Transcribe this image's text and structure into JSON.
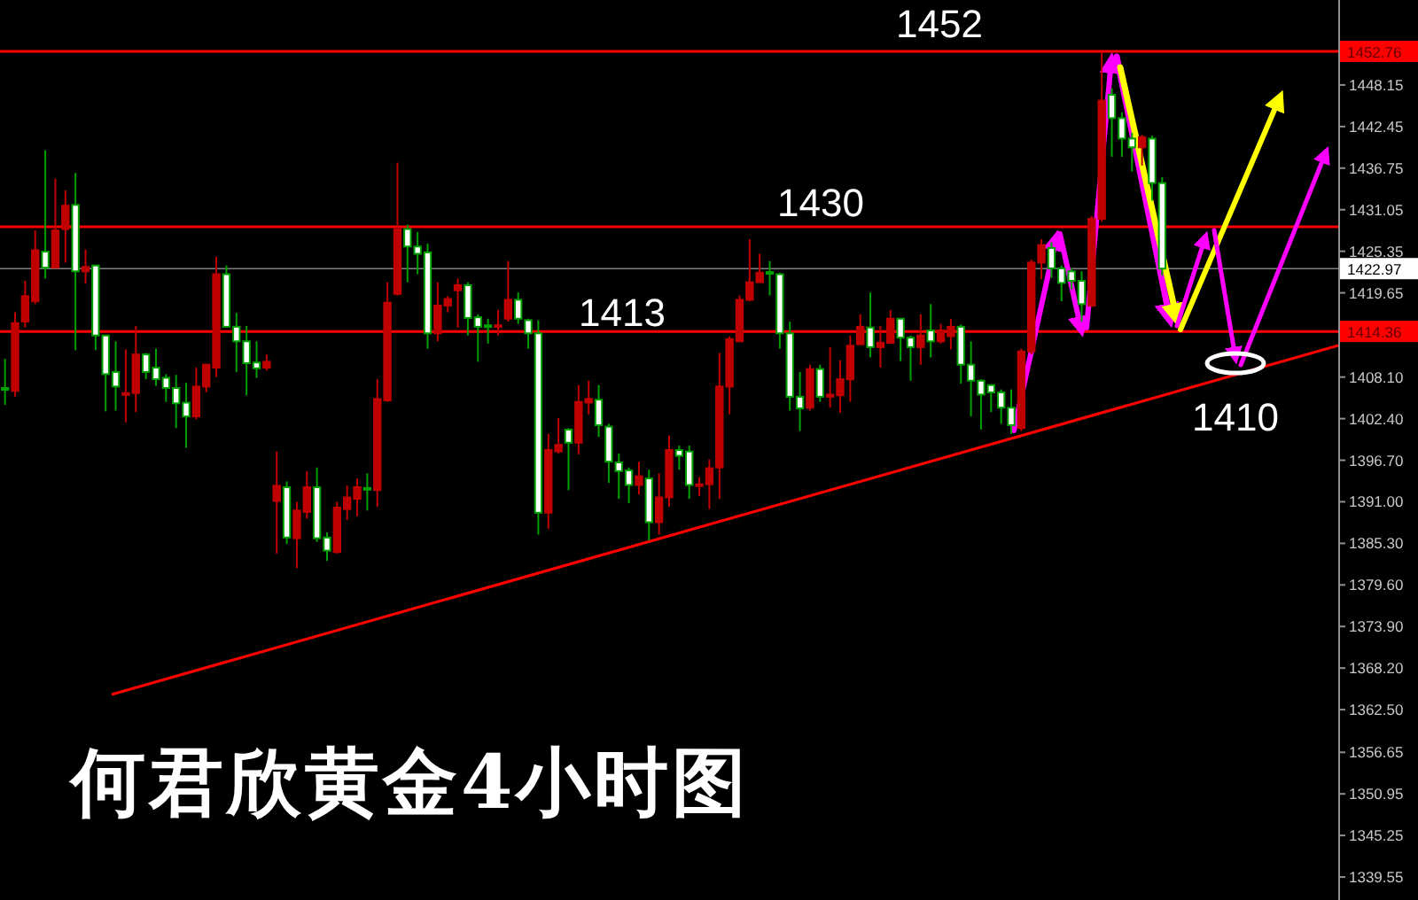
{
  "chart_data": {
    "type": "candlestick",
    "title": "何君欣黄金4小时图",
    "categories": [
      null,
      null,
      null,
      null,
      null,
      null,
      null,
      null,
      null,
      null,
      null,
      null,
      null,
      null,
      null,
      null,
      null,
      null,
      null,
      null,
      null,
      null,
      null,
      null,
      null,
      null,
      null,
      null,
      null,
      null,
      null,
      null,
      null,
      null,
      null,
      null,
      null,
      null,
      null,
      null,
      null,
      null,
      null,
      null,
      null,
      null,
      null,
      null,
      null,
      null,
      null,
      null,
      null,
      null,
      null,
      null,
      null,
      null,
      null,
      null,
      null,
      null,
      null,
      null,
      null,
      null,
      null,
      null,
      null,
      null,
      null,
      null,
      null,
      null,
      null,
      null,
      null,
      null,
      null,
      null,
      null,
      null,
      null,
      null,
      null,
      null,
      null,
      null,
      null,
      null,
      null,
      null,
      null,
      null,
      null,
      null,
      null,
      null,
      null,
      null,
      null,
      null,
      null,
      null,
      null,
      null,
      null,
      null,
      null,
      null,
      null,
      null,
      null,
      null,
      null,
      null,
      null,
      null,
      null,
      null,
      null,
      null,
      null,
      null,
      null,
      null,
      null,
      null,
      null,
      null,
      null,
      null,
      null
    ],
    "ohlc": [
      [
        1406.6,
        1410.6,
        1404.3,
        1406.4
      ],
      [
        1406.2,
        1417.0,
        1405.4,
        1415.5
      ],
      [
        1415.7,
        1421.3,
        1414.9,
        1419.2
      ],
      [
        1418.5,
        1428.2,
        1418.1,
        1425.5
      ],
      [
        1425.3,
        1439.2,
        1421.6,
        1423.1
      ],
      [
        1423.1,
        1435.3,
        1423.0,
        1428.2
      ],
      [
        1428.4,
        1433.7,
        1423.8,
        1431.6
      ],
      [
        1431.7,
        1436.1,
        1411.8,
        1422.6
      ],
      [
        1422.6,
        1425.6,
        1420.9,
        1423.2
      ],
      [
        1423.4,
        1423.5,
        1411.8,
        1413.8
      ],
      [
        1413.8,
        1413.8,
        1403.4,
        1408.5
      ],
      [
        1408.8,
        1413.0,
        1403.5,
        1406.8
      ],
      [
        1405.7,
        1411.9,
        1401.9,
        1405.9
      ],
      [
        1405.9,
        1415.1,
        1403.3,
        1411.2
      ],
      [
        1411.2,
        1411.4,
        1407.8,
        1408.8
      ],
      [
        1409.4,
        1412.0,
        1406.9,
        1407.8
      ],
      [
        1408.0,
        1408.5,
        1404.7,
        1406.6
      ],
      [
        1406.6,
        1408.4,
        1401.1,
        1404.5
      ],
      [
        1404.6,
        1407.3,
        1398.4,
        1402.7
      ],
      [
        1402.7,
        1409.4,
        1402.3,
        1406.8
      ],
      [
        1406.8,
        1409.8,
        1406.0,
        1409.8
      ],
      [
        1409.4,
        1424.6,
        1408.1,
        1422.2
      ],
      [
        1422.2,
        1423.4,
        1414.9,
        1415.0
      ],
      [
        1415.0,
        1416.9,
        1408.8,
        1413.0
      ],
      [
        1413.0,
        1415.1,
        1405.6,
        1410.0
      ],
      [
        1410.1,
        1413.0,
        1408.0,
        1409.3
      ],
      [
        1409.4,
        1411.2,
        1409.0,
        1410.2
      ],
      [
        1391.1,
        1397.9,
        1383.9,
        1393.2
      ],
      [
        1393.0,
        1393.8,
        1385.2,
        1386.1
      ],
      [
        1386.0,
        1391.0,
        1381.9,
        1389.8
      ],
      [
        1389.6,
        1395.2,
        1388.7,
        1393.0
      ],
      [
        1393.0,
        1395.7,
        1385.5,
        1386.0
      ],
      [
        1386.1,
        1386.8,
        1382.9,
        1384.3
      ],
      [
        1384.1,
        1391.0,
        1383.9,
        1390.2
      ],
      [
        1390.0,
        1393.2,
        1388.5,
        1391.6
      ],
      [
        1391.4,
        1394.2,
        1389.0,
        1393.0
      ],
      [
        1392.9,
        1394.9,
        1389.8,
        1392.8
      ],
      [
        1392.6,
        1407.8,
        1390.3,
        1405.1
      ],
      [
        1404.9,
        1421.1,
        1404.7,
        1418.3
      ],
      [
        1419.5,
        1437.5,
        1419.3,
        1428.4
      ],
      [
        1428.4,
        1429.0,
        1421.1,
        1426.0
      ],
      [
        1426.0,
        1428.0,
        1422.2,
        1425.0
      ],
      [
        1425.2,
        1426.4,
        1412.0,
        1414.1
      ],
      [
        1414.1,
        1421.1,
        1413.0,
        1417.9
      ],
      [
        1417.9,
        1419.2,
        1417.0,
        1418.8
      ],
      [
        1420.0,
        1421.6,
        1414.9,
        1420.7
      ],
      [
        1420.7,
        1421.1,
        1413.8,
        1416.2
      ],
      [
        1416.3,
        1416.7,
        1410.2,
        1415.0
      ],
      [
        1415.2,
        1416.1,
        1412.7,
        1415.1
      ],
      [
        1415.0,
        1417.3,
        1413.8,
        1415.2
      ],
      [
        1416.1,
        1424.0,
        1415.7,
        1418.7
      ],
      [
        1418.7,
        1419.7,
        1415.4,
        1416.1
      ],
      [
        1415.9,
        1416.1,
        1412.0,
        1414.1
      ],
      [
        1414.1,
        1415.9,
        1386.5,
        1389.5
      ],
      [
        1389.5,
        1400.3,
        1387.3,
        1398.1
      ],
      [
        1397.9,
        1402.5,
        1397.6,
        1398.8
      ],
      [
        1400.9,
        1401.1,
        1392.6,
        1399.1
      ],
      [
        1399.1,
        1407.0,
        1397.5,
        1404.7
      ],
      [
        1404.6,
        1407.6,
        1403.0,
        1405.1
      ],
      [
        1405.0,
        1407.0,
        1399.9,
        1401.5
      ],
      [
        1401.3,
        1401.7,
        1393.6,
        1396.5
      ],
      [
        1396.4,
        1397.6,
        1391.4,
        1395.2
      ],
      [
        1395.3,
        1395.7,
        1390.8,
        1393.3
      ],
      [
        1393.3,
        1396.5,
        1392.0,
        1394.5
      ],
      [
        1394.2,
        1395.4,
        1385.7,
        1388.2
      ],
      [
        1388.2,
        1394.9,
        1386.5,
        1391.6
      ],
      [
        1391.6,
        1400.1,
        1390.3,
        1398.1
      ],
      [
        1398.1,
        1398.7,
        1395.4,
        1397.3
      ],
      [
        1397.9,
        1398.7,
        1391.4,
        1393.3
      ],
      [
        1393.2,
        1394.4,
        1391.8,
        1393.4
      ],
      [
        1393.4,
        1396.8,
        1390.0,
        1395.6
      ],
      [
        1395.7,
        1411.4,
        1391.4,
        1406.8
      ],
      [
        1406.8,
        1413.7,
        1403.0,
        1413.3
      ],
      [
        1413.0,
        1419.3,
        1413.0,
        1418.7
      ],
      [
        1418.7,
        1427.0,
        1418.5,
        1421.1
      ],
      [
        1421.1,
        1425.0,
        1421.1,
        1422.4
      ],
      [
        1422.5,
        1424.0,
        1419.3,
        1422.4
      ],
      [
        1422.2,
        1422.4,
        1412.0,
        1414.1
      ],
      [
        1414.1,
        1415.7,
        1403.5,
        1405.4
      ],
      [
        1405.4,
        1408.8,
        1400.7,
        1403.8
      ],
      [
        1403.9,
        1409.8,
        1403.5,
        1409.2
      ],
      [
        1409.2,
        1409.8,
        1404.7,
        1405.4
      ],
      [
        1405.4,
        1412.2,
        1403.9,
        1405.7
      ],
      [
        1405.6,
        1410.4,
        1403.2,
        1407.8
      ],
      [
        1407.8,
        1413.8,
        1404.7,
        1412.4
      ],
      [
        1412.6,
        1416.7,
        1412.6,
        1415.0
      ],
      [
        1414.9,
        1419.7,
        1410.8,
        1412.2
      ],
      [
        1412.2,
        1415.1,
        1409.4,
        1412.8
      ],
      [
        1412.8,
        1417.3,
        1412.7,
        1416.1
      ],
      [
        1416.1,
        1416.2,
        1410.3,
        1413.5
      ],
      [
        1413.5,
        1413.8,
        1407.6,
        1412.2
      ],
      [
        1412.2,
        1416.7,
        1409.8,
        1413.8
      ],
      [
        1414.5,
        1418.1,
        1410.8,
        1413.0
      ],
      [
        1413.0,
        1415.4,
        1412.7,
        1414.5
      ],
      [
        1413.7,
        1416.1,
        1411.9,
        1415.0
      ],
      [
        1415.0,
        1415.3,
        1407.2,
        1409.8
      ],
      [
        1409.8,
        1413.0,
        1402.7,
        1407.6
      ],
      [
        1407.6,
        1407.8,
        1400.9,
        1405.7
      ],
      [
        1407.0,
        1407.0,
        1403.3,
        1406.0
      ],
      [
        1406.0,
        1406.4,
        1401.7,
        1403.9
      ],
      [
        1403.9,
        1406.4,
        1400.3,
        1401.5
      ],
      [
        1401.1,
        1412.0,
        1400.7,
        1411.6
      ],
      [
        1411.6,
        1424.2,
        1411.2,
        1423.8
      ],
      [
        1423.8,
        1427.0,
        1421.5,
        1426.2
      ],
      [
        1425.8,
        1426.6,
        1421.7,
        1423.0
      ],
      [
        1423.0,
        1423.4,
        1418.5,
        1421.0
      ],
      [
        1422.6,
        1423.0,
        1420.1,
        1421.3
      ],
      [
        1421.3,
        1422.6,
        1415.7,
        1418.1
      ],
      [
        1417.9,
        1430.2,
        1417.7,
        1429.8
      ],
      [
        1429.8,
        1452.7,
        1429.4,
        1446.0
      ],
      [
        1446.8,
        1447.7,
        1438.3,
        1443.6
      ],
      [
        1443.6,
        1444.4,
        1438.3,
        1440.8
      ],
      [
        1440.8,
        1441.6,
        1436.3,
        1439.6
      ],
      [
        1439.6,
        1441.3,
        1437.1,
        1441.0
      ],
      [
        1440.8,
        1441.2,
        1432.3,
        1434.7
      ],
      [
        1434.7,
        1435.5,
        1422.0,
        1422.97
      ],
      null,
      null,
      null,
      null,
      null,
      null,
      null,
      null,
      null,
      null,
      null,
      null,
      null,
      null,
      null,
      null,
      null
    ],
    "ylim": [
      1336.4,
      1459.8
    ],
    "yticks": [
      {
        "value": 1339.55,
        "label": "1339.55"
      },
      {
        "value": 1345.25,
        "label": "1345.25"
      },
      {
        "value": 1350.95,
        "label": "1350.95"
      },
      {
        "value": 1356.65,
        "label": "1356.65"
      },
      {
        "value": 1362.5,
        "label": "1362.50"
      },
      {
        "value": 1368.2,
        "label": "1368.20"
      },
      {
        "value": 1373.9,
        "label": "1373.90"
      },
      {
        "value": 1379.6,
        "label": "1379.60"
      },
      {
        "value": 1385.3,
        "label": "1385.30"
      },
      {
        "value": 1391.0,
        "label": "1391.00"
      },
      {
        "value": 1396.7,
        "label": "1396.70"
      },
      {
        "value": 1402.4,
        "label": "1402.40"
      },
      {
        "value": 1408.1,
        "label": "1408.10"
      },
      {
        "value": 1419.65,
        "label": "1419.65"
      },
      {
        "value": 1425.35,
        "label": "1425.35"
      },
      {
        "value": 1431.05,
        "label": "1431.05"
      },
      {
        "value": 1436.75,
        "label": "1436.75"
      },
      {
        "value": 1442.45,
        "label": "1442.45"
      },
      {
        "value": 1448.15,
        "label": "1448.15"
      }
    ],
    "ref_lines": [
      {
        "axis": "y",
        "value": 1452.76,
        "label": "1452.76",
        "color": "#ff0000"
      },
      {
        "axis": "y",
        "value": 1428.7,
        "color": "#ff0000"
      },
      {
        "axis": "y",
        "value": 1422.97,
        "label": "1422.97",
        "color": "#808080"
      },
      {
        "axis": "y",
        "value": 1414.36,
        "label": "1414.36",
        "color": "#ff0000"
      }
    ],
    "annotations": [
      {
        "text": "1452",
        "y": 1452.76
      },
      {
        "text": "1430",
        "y": 1428.7
      },
      {
        "text": "1413",
        "y": 1414.36
      },
      {
        "text": "1410",
        "y": 1410
      }
    ],
    "tick_labels": "y",
    "grid": false
  }
}
